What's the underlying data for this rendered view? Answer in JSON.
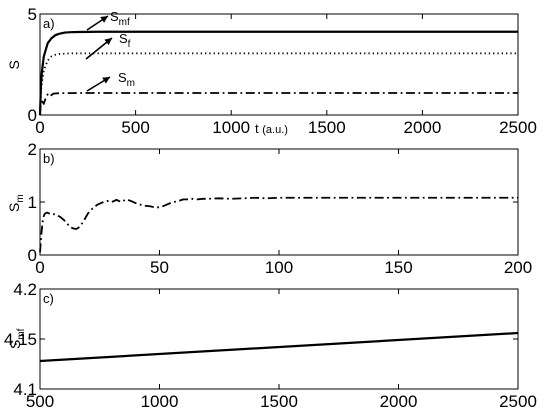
{
  "chart_data": [
    {
      "panel": "a)",
      "type": "line",
      "xlabel": "t",
      "xunit": "(a.u.)",
      "ylabel": "S",
      "xlim": [
        0,
        2500
      ],
      "ylim": [
        0,
        5
      ],
      "xticks": [
        "0",
        "500",
        "1000",
        "1500",
        "2000",
        "2500"
      ],
      "yticks": [
        "0",
        "5"
      ],
      "xtick_values": [
        0,
        500,
        1000,
        1500,
        2000,
        2500
      ],
      "ytick_values": [
        0,
        5
      ],
      "series": [
        {
          "name": "S_mf",
          "label_main": "S",
          "label_sub": "mf",
          "style": "solid",
          "x": [
            0,
            5,
            10,
            20,
            40,
            60,
            80,
            100,
            130,
            160,
            200,
            250,
            300,
            400,
            600,
            1000,
            1500,
            2000,
            2500
          ],
          "y": [
            0,
            1.5,
            2.15,
            2.9,
            3.55,
            3.8,
            3.95,
            4.02,
            4.08,
            4.1,
            4.11,
            4.115,
            4.12,
            4.12,
            4.12,
            4.12,
            4.12,
            4.12,
            4.12
          ]
        },
        {
          "name": "S_f",
          "label_main": "S",
          "label_sub": "f",
          "style": "dotted",
          "x": [
            0,
            5,
            10,
            20,
            40,
            60,
            80,
            100,
            130,
            160,
            200,
            250,
            300,
            400,
            600,
            1000,
            1500,
            2000,
            2500
          ],
          "y": [
            0,
            1.2,
            1.6,
            2.2,
            2.7,
            2.9,
            2.98,
            3.02,
            3.04,
            3.05,
            3.05,
            3.05,
            3.05,
            3.05,
            3.05,
            3.05,
            3.05,
            3.05,
            3.05
          ]
        },
        {
          "name": "S_m",
          "label_main": "S",
          "label_sub": "m",
          "style": "dashdot",
          "x": [
            0,
            3,
            6,
            10,
            20,
            30,
            40,
            50,
            70,
            100,
            200,
            500,
            1000,
            1500,
            2000,
            2500
          ],
          "y": [
            0,
            0.6,
            0.78,
            0.7,
            0.55,
            0.85,
            1.02,
            0.92,
            1.06,
            1.08,
            1.09,
            1.09,
            1.09,
            1.09,
            1.09,
            1.09
          ]
        }
      ]
    },
    {
      "panel": "b)",
      "type": "line",
      "xlabel": "",
      "ylabel": "S",
      "ylabel_sub": "m",
      "xlim": [
        0,
        200
      ],
      "ylim": [
        0,
        2
      ],
      "xticks": [
        "0",
        "50",
        "100",
        "150",
        "200"
      ],
      "yticks": [
        "0",
        "1",
        "2"
      ],
      "xtick_values": [
        0,
        50,
        100,
        150,
        200
      ],
      "ytick_values": [
        0,
        1,
        2
      ],
      "series": [
        {
          "name": "S_m",
          "style": "dashdot",
          "x": [
            0,
            0.5,
            1,
            1.5,
            2,
            3,
            4,
            5,
            6,
            7,
            8,
            9,
            10,
            11,
            12,
            13,
            14,
            15,
            16,
            17,
            18,
            19,
            20,
            22,
            24,
            26,
            28,
            30,
            32,
            34,
            36,
            38,
            40,
            42,
            44,
            46,
            48,
            50,
            52,
            54,
            56,
            58,
            60,
            62,
            64,
            66,
            68,
            70,
            75,
            80,
            85,
            90,
            95,
            100,
            110,
            120,
            130,
            140,
            150,
            160,
            170,
            180,
            190,
            200
          ],
          "y": [
            0.05,
            0.35,
            0.6,
            0.72,
            0.78,
            0.8,
            0.78,
            0.76,
            0.77,
            0.75,
            0.73,
            0.7,
            0.66,
            0.61,
            0.56,
            0.52,
            0.5,
            0.49,
            0.51,
            0.56,
            0.62,
            0.7,
            0.78,
            0.88,
            0.95,
            0.99,
            1.02,
            1.0,
            1.04,
            1.0,
            1.05,
            1.02,
            0.98,
            0.95,
            0.93,
            0.92,
            0.9,
            0.9,
            0.93,
            0.97,
            1.0,
            1.02,
            1.05,
            1.05,
            1.06,
            1.05,
            1.06,
            1.06,
            1.07,
            1.06,
            1.07,
            1.08,
            1.07,
            1.08,
            1.08,
            1.08,
            1.08,
            1.08,
            1.08,
            1.08,
            1.08,
            1.08,
            1.08,
            1.08
          ]
        }
      ]
    },
    {
      "panel": "c)",
      "type": "line",
      "xlabel": "",
      "ylabel": "S",
      "ylabel_sub": "mf",
      "xlim": [
        500,
        2500
      ],
      "ylim": [
        4.1,
        4.2
      ],
      "xticks": [
        "500",
        "1000",
        "1500",
        "2000",
        "2500"
      ],
      "yticks": [
        "4.1",
        "4.15",
        "4.2"
      ],
      "xtick_values": [
        500,
        1000,
        1500,
        2000,
        2500
      ],
      "ytick_values": [
        4.1,
        4.15,
        4.2
      ],
      "series": [
        {
          "name": "S_mf",
          "style": "solid",
          "x": [
            500,
            2500
          ],
          "y": [
            4.128,
            4.156
          ]
        }
      ]
    }
  ]
}
